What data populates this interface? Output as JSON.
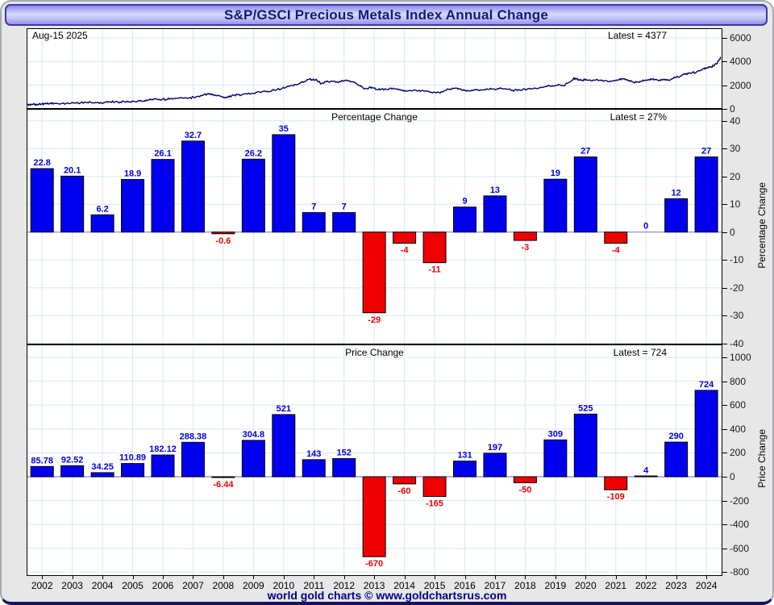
{
  "title": "S&P/GSCI Precious Metals Index Annual Change",
  "footer_credit": "world gold charts © www.goldchartsrus.com",
  "colors": {
    "positive_bar": "#0000ee",
    "negative_bar": "#ee0000",
    "positive_label": "#0000dd",
    "negative_label": "#ee0000",
    "bar_outline": "#000000",
    "line": "#000066",
    "grid": "#d9e8f5",
    "zero_line": "#8080e0",
    "title_text": "#16167f",
    "footer_text": "#00008b"
  },
  "years": [
    2002,
    2003,
    2004,
    2005,
    2006,
    2007,
    2008,
    2009,
    2010,
    2011,
    2012,
    2013,
    2014,
    2015,
    2016,
    2017,
    2018,
    2019,
    2020,
    2021,
    2022,
    2023,
    2024
  ],
  "chart_data": [
    {
      "type": "line",
      "name": "index-level",
      "date_label": "Aug-15 2025",
      "latest_label": "Latest = 4377",
      "latest_value": 4377,
      "ylim": [
        0,
        6820
      ],
      "yticks": [
        6000,
        4000,
        2000,
        0
      ],
      "grid": true,
      "x": [
        2002.0,
        2002.08,
        2002.17,
        2002.25,
        2002.33,
        2002.42,
        2002.5,
        2002.58,
        2002.67,
        2002.75,
        2002.83,
        2002.92,
        2003.0,
        2003.17,
        2003.33,
        2003.5,
        2003.67,
        2003.83,
        2004.0,
        2004.17,
        2004.33,
        2004.5,
        2004.67,
        2004.83,
        2005.0,
        2005.17,
        2005.33,
        2005.5,
        2005.67,
        2005.83,
        2006.0,
        2006.12,
        2006.25,
        2006.37,
        2006.5,
        2006.62,
        2006.75,
        2006.87,
        2007.0,
        2007.17,
        2007.33,
        2007.5,
        2007.67,
        2007.83,
        2008.0,
        2008.12,
        2008.21,
        2008.33,
        2008.5,
        2008.62,
        2008.75,
        2008.83,
        2008.92,
        2009.0,
        2009.17,
        2009.33,
        2009.5,
        2009.67,
        2009.83,
        2010.0,
        2010.17,
        2010.33,
        2010.5,
        2010.67,
        2010.83,
        2011.0,
        2011.12,
        2011.25,
        2011.37,
        2011.5,
        2011.62,
        2011.71,
        2011.83,
        2011.92,
        2012.0,
        2012.17,
        2012.33,
        2012.5,
        2012.67,
        2012.83,
        2013.0,
        2013.17,
        2013.29,
        2013.42,
        2013.54,
        2013.67,
        2013.79,
        2013.92,
        2014.0,
        2014.17,
        2014.33,
        2014.5,
        2014.67,
        2014.83,
        2015.0,
        2015.17,
        2015.33,
        2015.5,
        2015.67,
        2015.83,
        2016.0,
        2016.17,
        2016.33,
        2016.5,
        2016.62,
        2016.75,
        2016.87,
        2017.0,
        2017.17,
        2017.33,
        2017.5,
        2017.67,
        2017.83,
        2018.0,
        2018.17,
        2018.33,
        2018.5,
        2018.67,
        2018.83,
        2019.0,
        2019.17,
        2019.33,
        2019.5,
        2019.67,
        2019.83,
        2020.0,
        2020.12,
        2020.25,
        2020.37,
        2020.5,
        2020.58,
        2020.67,
        2020.75,
        2020.83,
        2020.92,
        2021.0,
        2021.17,
        2021.33,
        2021.5,
        2021.67,
        2021.83,
        2022.0,
        2022.12,
        2022.25,
        2022.37,
        2022.5,
        2022.62,
        2022.75,
        2022.87,
        2023.0,
        2023.12,
        2023.25,
        2023.37,
        2023.5,
        2023.62,
        2023.75,
        2023.87,
        2024.0,
        2024.12,
        2024.25,
        2024.37,
        2024.5,
        2024.62,
        2024.75,
        2024.87,
        2025.0,
        2025.08,
        2025.17,
        2025.25,
        2025.33,
        2025.42,
        2025.5,
        2025.54,
        2025.58
      ],
      "y": [
        375,
        380,
        384,
        392,
        398,
        404,
        410,
        414,
        420,
        426,
        436,
        450,
        462,
        456,
        466,
        480,
        500,
        530,
        554,
        560,
        546,
        540,
        556,
        574,
        588,
        584,
        590,
        602,
        630,
        668,
        699,
        740,
        792,
        848,
        800,
        822,
        812,
        852,
        881,
        908,
        898,
        922,
        978,
        1076,
        1170,
        1246,
        1284,
        1222,
        1148,
        1046,
        928,
        982,
        1062,
        1163,
        1184,
        1212,
        1252,
        1322,
        1418,
        1468,
        1498,
        1552,
        1622,
        1724,
        1848,
        1989,
        2052,
        2148,
        2296,
        2398,
        2546,
        2448,
        2502,
        2304,
        2132,
        2276,
        2348,
        2252,
        2298,
        2422,
        2284,
        2178,
        1982,
        1802,
        1722,
        1848,
        1752,
        1652,
        1614,
        1698,
        1732,
        1708,
        1642,
        1562,
        1554,
        1598,
        1572,
        1502,
        1462,
        1432,
        1389,
        1518,
        1642,
        1722,
        1758,
        1678,
        1562,
        1520,
        1558,
        1588,
        1612,
        1642,
        1678,
        1717,
        1702,
        1662,
        1582,
        1552,
        1592,
        1667,
        1692,
        1722,
        1798,
        1888,
        1932,
        1976,
        2018,
        1948,
        2152,
        2348,
        2598,
        2522,
        2478,
        2422,
        2458,
        2501,
        2382,
        2448,
        2422,
        2392,
        2362,
        2392,
        2458,
        2548,
        2482,
        2332,
        2252,
        2282,
        2322,
        2396,
        2478,
        2528,
        2492,
        2432,
        2468,
        2422,
        2478,
        2686,
        2702,
        2812,
        2922,
        3002,
        3082,
        3102,
        3252,
        3410,
        3482,
        3562,
        3522,
        3652,
        3802,
        4052,
        4202,
        4377
      ]
    },
    {
      "type": "bar",
      "title": "Percentage Change",
      "latest_label": "Latest = 27%",
      "latest_value": 27,
      "ylabel": "Percentage Change",
      "ylim": [
        -40.4,
        44.3
      ],
      "yticks": [
        40,
        30,
        20,
        10,
        0,
        -10,
        -20,
        -30,
        -40
      ],
      "grid": true,
      "categories": [
        2002,
        2003,
        2004,
        2005,
        2006,
        2007,
        2008,
        2009,
        2010,
        2011,
        2012,
        2013,
        2014,
        2015,
        2016,
        2017,
        2018,
        2019,
        2020,
        2021,
        2022,
        2023,
        2024
      ],
      "values": [
        22.8,
        20.1,
        6.2,
        18.9,
        26.1,
        32.7,
        -0.6,
        26.2,
        35,
        7,
        7,
        -29,
        -4,
        -11,
        9,
        13,
        -3,
        19,
        27,
        -4,
        0,
        12,
        27
      ],
      "labels": [
        "22.8",
        "20.1",
        "6.2",
        "18.9",
        "26.1",
        "32.7",
        "-0.6",
        "26.2",
        "35",
        "7",
        "7",
        "-29",
        "-4",
        "-11",
        "9",
        "13",
        "-3",
        "19",
        "27",
        "-4",
        "0",
        "12",
        "27"
      ]
    },
    {
      "type": "bar",
      "title": "Price Change",
      "latest_label": "Latest = 724",
      "latest_value": 724,
      "ylabel": "Price Change",
      "ylim": [
        -832,
        1109
      ],
      "yticks": [
        1000,
        800,
        600,
        400,
        200,
        0,
        -200,
        -400,
        -600,
        -800
      ],
      "grid": true,
      "categories": [
        2002,
        2003,
        2004,
        2005,
        2006,
        2007,
        2008,
        2009,
        2010,
        2011,
        2012,
        2013,
        2014,
        2015,
        2016,
        2017,
        2018,
        2019,
        2020,
        2021,
        2022,
        2023,
        2024
      ],
      "values": [
        85.78,
        92.52,
        34.25,
        110.89,
        182.12,
        288.38,
        -6.44,
        304.8,
        521,
        143,
        152,
        -670,
        -60,
        -165,
        131,
        197,
        -50,
        309,
        525,
        -109,
        4,
        290,
        724
      ],
      "labels": [
        "85.78",
        "92.52",
        "34.25",
        "110.89",
        "182.12",
        "288.38",
        "-6.44",
        "304.8",
        "521",
        "143",
        "152",
        "-670",
        "-60",
        "-165",
        "131",
        "197",
        "-50",
        "309",
        "525",
        "-109",
        "4",
        "290",
        "724"
      ]
    }
  ]
}
